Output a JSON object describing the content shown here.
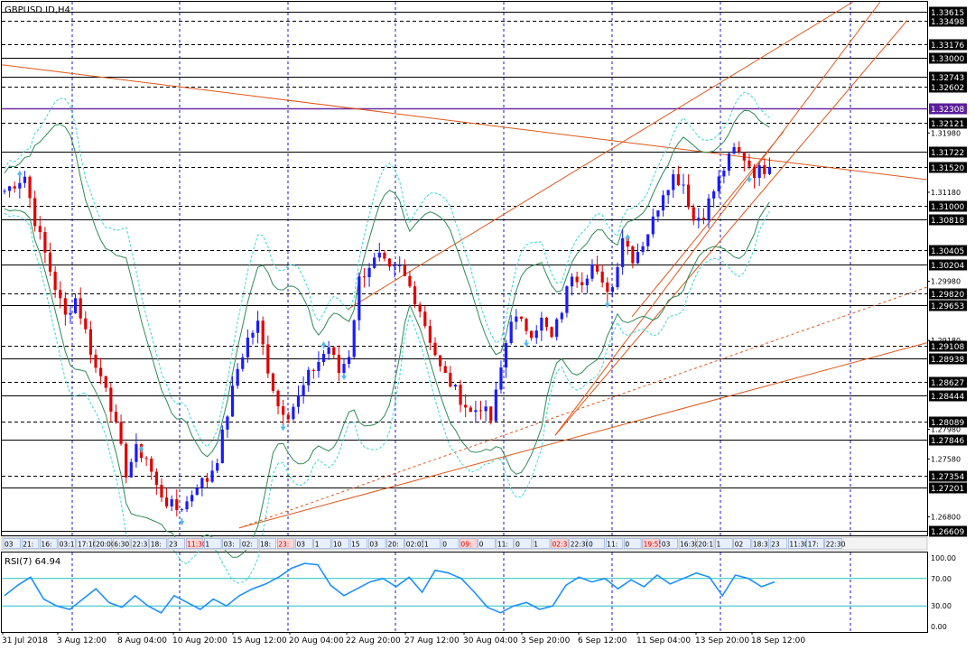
{
  "chart_data": [
    {
      "type": "candlestick",
      "title": "GBPUSD.ID,H4",
      "ylim": [
        1.2655,
        1.3375
      ],
      "x_ticks": [
        "31 Jul 2018",
        "3 Aug 12:00",
        "8 Aug 04:00",
        "10 Aug 20:00",
        "15 Aug 12:00",
        "20 Aug 04:00",
        "22 Aug 20:00",
        "27 Aug 12:00",
        "30 Aug 04:00",
        "3 Sep 20:00",
        "6 Sep 12:00",
        "11 Sep 04:00",
        "13 Sep 20:00",
        "18 Sep 12:00"
      ],
      "price_scale": [
        "1.31980",
        "1.31180",
        "1.29980",
        "1.29180",
        "1.27980",
        "1.27580",
        "1.26800"
      ],
      "levels": [
        {
          "value": "1.33615",
          "style": "solid",
          "color": "#000000"
        },
        {
          "value": "1.33498",
          "style": "dashed",
          "color": "#000000"
        },
        {
          "value": "1.33176",
          "style": "dashed",
          "color": "#000000"
        },
        {
          "value": "1.33000",
          "style": "solid",
          "color": "#000000"
        },
        {
          "value": "1.32743",
          "style": "solid",
          "color": "#000000"
        },
        {
          "value": "1.32602",
          "style": "dashed",
          "color": "#000000"
        },
        {
          "value": "1.32308",
          "style": "solid",
          "color": "#6a2aa0"
        },
        {
          "value": "1.32121",
          "style": "dashed",
          "color": "#000000"
        },
        {
          "value": "1.31722",
          "style": "solid",
          "color": "#000000"
        },
        {
          "value": "1.31520",
          "style": "dashed",
          "color": "#000000"
        },
        {
          "value": "1.31000",
          "style": "dashed",
          "color": "#000000"
        },
        {
          "value": "1.30818",
          "style": "solid",
          "color": "#000000"
        },
        {
          "value": "1.30405",
          "style": "dashed",
          "color": "#000000"
        },
        {
          "value": "1.30204",
          "style": "solid",
          "color": "#000000"
        },
        {
          "value": "1.29820",
          "style": "dashed",
          "color": "#000000"
        },
        {
          "value": "1.29653",
          "style": "solid",
          "color": "#000000"
        },
        {
          "value": "1.29108",
          "style": "dashed",
          "color": "#000000"
        },
        {
          "value": "1.28938",
          "style": "solid",
          "color": "#000000"
        },
        {
          "value": "1.28627",
          "style": "dashed",
          "color": "#000000"
        },
        {
          "value": "1.28444",
          "style": "solid",
          "color": "#000000"
        },
        {
          "value": "1.28089",
          "style": "dashed",
          "color": "#000000"
        },
        {
          "value": "1.27846",
          "style": "solid",
          "color": "#000000"
        },
        {
          "value": "1.27354",
          "style": "dashed",
          "color": "#000000"
        },
        {
          "value": "1.27201",
          "style": "solid",
          "color": "#000000"
        },
        {
          "value": "1.26609",
          "style": "solid",
          "color": "#000000"
        }
      ],
      "price_path": [
        {
          "x": 0,
          "y": 1.312
        },
        {
          "x": 4,
          "y": 1.314
        },
        {
          "x": 6,
          "y": 1.308
        },
        {
          "x": 8,
          "y": 1.3035
        },
        {
          "x": 10,
          "y": 1.299
        },
        {
          "x": 12,
          "y": 1.295
        },
        {
          "x": 14,
          "y": 1.2975
        },
        {
          "x": 16,
          "y": 1.293
        },
        {
          "x": 18,
          "y": 1.288
        },
        {
          "x": 20,
          "y": 1.286
        },
        {
          "x": 22,
          "y": 1.28
        },
        {
          "x": 24,
          "y": 1.274
        },
        {
          "x": 26,
          "y": 1.277
        },
        {
          "x": 28,
          "y": 1.276
        },
        {
          "x": 30,
          "y": 1.272
        },
        {
          "x": 32,
          "y": 1.27
        },
        {
          "x": 34,
          "y": 1.269
        },
        {
          "x": 36,
          "y": 1.27
        },
        {
          "x": 38,
          "y": 1.2725
        },
        {
          "x": 40,
          "y": 1.273
        },
        {
          "x": 42,
          "y": 1.276
        },
        {
          "x": 44,
          "y": 1.282
        },
        {
          "x": 46,
          "y": 1.288
        },
        {
          "x": 48,
          "y": 1.292
        },
        {
          "x": 50,
          "y": 1.294
        },
        {
          "x": 52,
          "y": 1.288
        },
        {
          "x": 54,
          "y": 1.283
        },
        {
          "x": 56,
          "y": 1.282
        },
        {
          "x": 58,
          "y": 1.284
        },
        {
          "x": 60,
          "y": 1.287
        },
        {
          "x": 62,
          "y": 1.289
        },
        {
          "x": 64,
          "y": 1.291
        },
        {
          "x": 66,
          "y": 1.2875
        },
        {
          "x": 68,
          "y": 1.29
        },
        {
          "x": 70,
          "y": 1.3
        },
        {
          "x": 72,
          "y": 1.302
        },
        {
          "x": 74,
          "y": 1.303
        },
        {
          "x": 76,
          "y": 1.301
        },
        {
          "x": 78,
          "y": 1.3015
        },
        {
          "x": 80,
          "y": 1.299
        },
        {
          "x": 82,
          "y": 1.296
        },
        {
          "x": 84,
          "y": 1.292
        },
        {
          "x": 86,
          "y": 1.288
        },
        {
          "x": 88,
          "y": 1.286
        },
        {
          "x": 90,
          "y": 1.284
        },
        {
          "x": 92,
          "y": 1.282
        },
        {
          "x": 94,
          "y": 1.283
        },
        {
          "x": 96,
          "y": 1.281
        },
        {
          "x": 98,
          "y": 1.288
        },
        {
          "x": 100,
          "y": 1.295
        },
        {
          "x": 102,
          "y": 1.294
        },
        {
          "x": 104,
          "y": 1.293
        },
        {
          "x": 106,
          "y": 1.2945
        },
        {
          "x": 108,
          "y": 1.292
        },
        {
          "x": 110,
          "y": 1.296
        },
        {
          "x": 112,
          "y": 1.301
        },
        {
          "x": 114,
          "y": 1.3
        },
        {
          "x": 116,
          "y": 1.302
        },
        {
          "x": 118,
          "y": 1.299
        },
        {
          "x": 120,
          "y": 1.299
        },
        {
          "x": 122,
          "y": 1.306
        },
        {
          "x": 124,
          "y": 1.303
        },
        {
          "x": 126,
          "y": 1.305
        },
        {
          "x": 128,
          "y": 1.308
        },
        {
          "x": 130,
          "y": 1.312
        },
        {
          "x": 132,
          "y": 1.314
        },
        {
          "x": 134,
          "y": 1.313
        },
        {
          "x": 136,
          "y": 1.308
        },
        {
          "x": 138,
          "y": 1.309
        },
        {
          "x": 140,
          "y": 1.312
        },
        {
          "x": 142,
          "y": 1.315
        },
        {
          "x": 144,
          "y": 1.3175
        },
        {
          "x": 146,
          "y": 1.3165
        },
        {
          "x": 148,
          "y": 1.3145
        },
        {
          "x": 150,
          "y": 1.315
        },
        {
          "x": 152,
          "y": 1.317
        }
      ],
      "bar_count": 152,
      "time_labels": [
        "03",
        "21:",
        "16:",
        "03:1",
        "17:10",
        "20:00",
        "6:30",
        "22:3",
        "18:",
        "23",
        "11:30",
        "1",
        "03:",
        "02:",
        "18:",
        "23:",
        "03",
        "1",
        "10",
        "15",
        "03",
        "20:",
        "02:01",
        "1",
        "0",
        "09:",
        "0",
        "11:",
        "0",
        "1",
        "02:3",
        "22:30",
        "0",
        "11:",
        "0",
        "19:55",
        "03",
        "16:30",
        "20:1",
        "1",
        "02",
        "18:3",
        "23",
        "11:30",
        "17:",
        "22:30"
      ]
    },
    {
      "type": "line",
      "title": "RSI(7) 64.94",
      "ylim": [
        0,
        100
      ],
      "y_ticks": [
        "100.00",
        "70.00",
        "30.00",
        "0.00"
      ],
      "levels": [
        70,
        30
      ],
      "values": [
        {
          "x": 0,
          "y": 45
        },
        {
          "x": 2,
          "y": 60
        },
        {
          "x": 4,
          "y": 72
        },
        {
          "x": 6,
          "y": 40
        },
        {
          "x": 8,
          "y": 30
        },
        {
          "x": 10,
          "y": 25
        },
        {
          "x": 12,
          "y": 40
        },
        {
          "x": 14,
          "y": 55
        },
        {
          "x": 16,
          "y": 35
        },
        {
          "x": 18,
          "y": 28
        },
        {
          "x": 20,
          "y": 45
        },
        {
          "x": 22,
          "y": 30
        },
        {
          "x": 24,
          "y": 20
        },
        {
          "x": 26,
          "y": 45
        },
        {
          "x": 28,
          "y": 35
        },
        {
          "x": 30,
          "y": 25
        },
        {
          "x": 32,
          "y": 40
        },
        {
          "x": 34,
          "y": 30
        },
        {
          "x": 36,
          "y": 45
        },
        {
          "x": 38,
          "y": 55
        },
        {
          "x": 40,
          "y": 62
        },
        {
          "x": 42,
          "y": 72
        },
        {
          "x": 44,
          "y": 85
        },
        {
          "x": 46,
          "y": 92
        },
        {
          "x": 48,
          "y": 90
        },
        {
          "x": 50,
          "y": 60
        },
        {
          "x": 52,
          "y": 45
        },
        {
          "x": 54,
          "y": 55
        },
        {
          "x": 56,
          "y": 65
        },
        {
          "x": 58,
          "y": 70
        },
        {
          "x": 60,
          "y": 58
        },
        {
          "x": 62,
          "y": 72
        },
        {
          "x": 64,
          "y": 50
        },
        {
          "x": 66,
          "y": 82
        },
        {
          "x": 68,
          "y": 78
        },
        {
          "x": 70,
          "y": 70
        },
        {
          "x": 72,
          "y": 50
        },
        {
          "x": 74,
          "y": 28
        },
        {
          "x": 76,
          "y": 20
        },
        {
          "x": 78,
          "y": 30
        },
        {
          "x": 80,
          "y": 35
        },
        {
          "x": 82,
          "y": 25
        },
        {
          "x": 84,
          "y": 30
        },
        {
          "x": 86,
          "y": 60
        },
        {
          "x": 88,
          "y": 72
        },
        {
          "x": 90,
          "y": 65
        },
        {
          "x": 92,
          "y": 70
        },
        {
          "x": 94,
          "y": 55
        },
        {
          "x": 96,
          "y": 68
        },
        {
          "x": 98,
          "y": 58
        },
        {
          "x": 100,
          "y": 75
        },
        {
          "x": 102,
          "y": 62
        },
        {
          "x": 104,
          "y": 70
        },
        {
          "x": 106,
          "y": 78
        },
        {
          "x": 108,
          "y": 72
        },
        {
          "x": 110,
          "y": 45
        },
        {
          "x": 112,
          "y": 75
        },
        {
          "x": 114,
          "y": 70
        },
        {
          "x": 116,
          "y": 58
        },
        {
          "x": 118,
          "y": 64.94
        }
      ]
    }
  ]
}
